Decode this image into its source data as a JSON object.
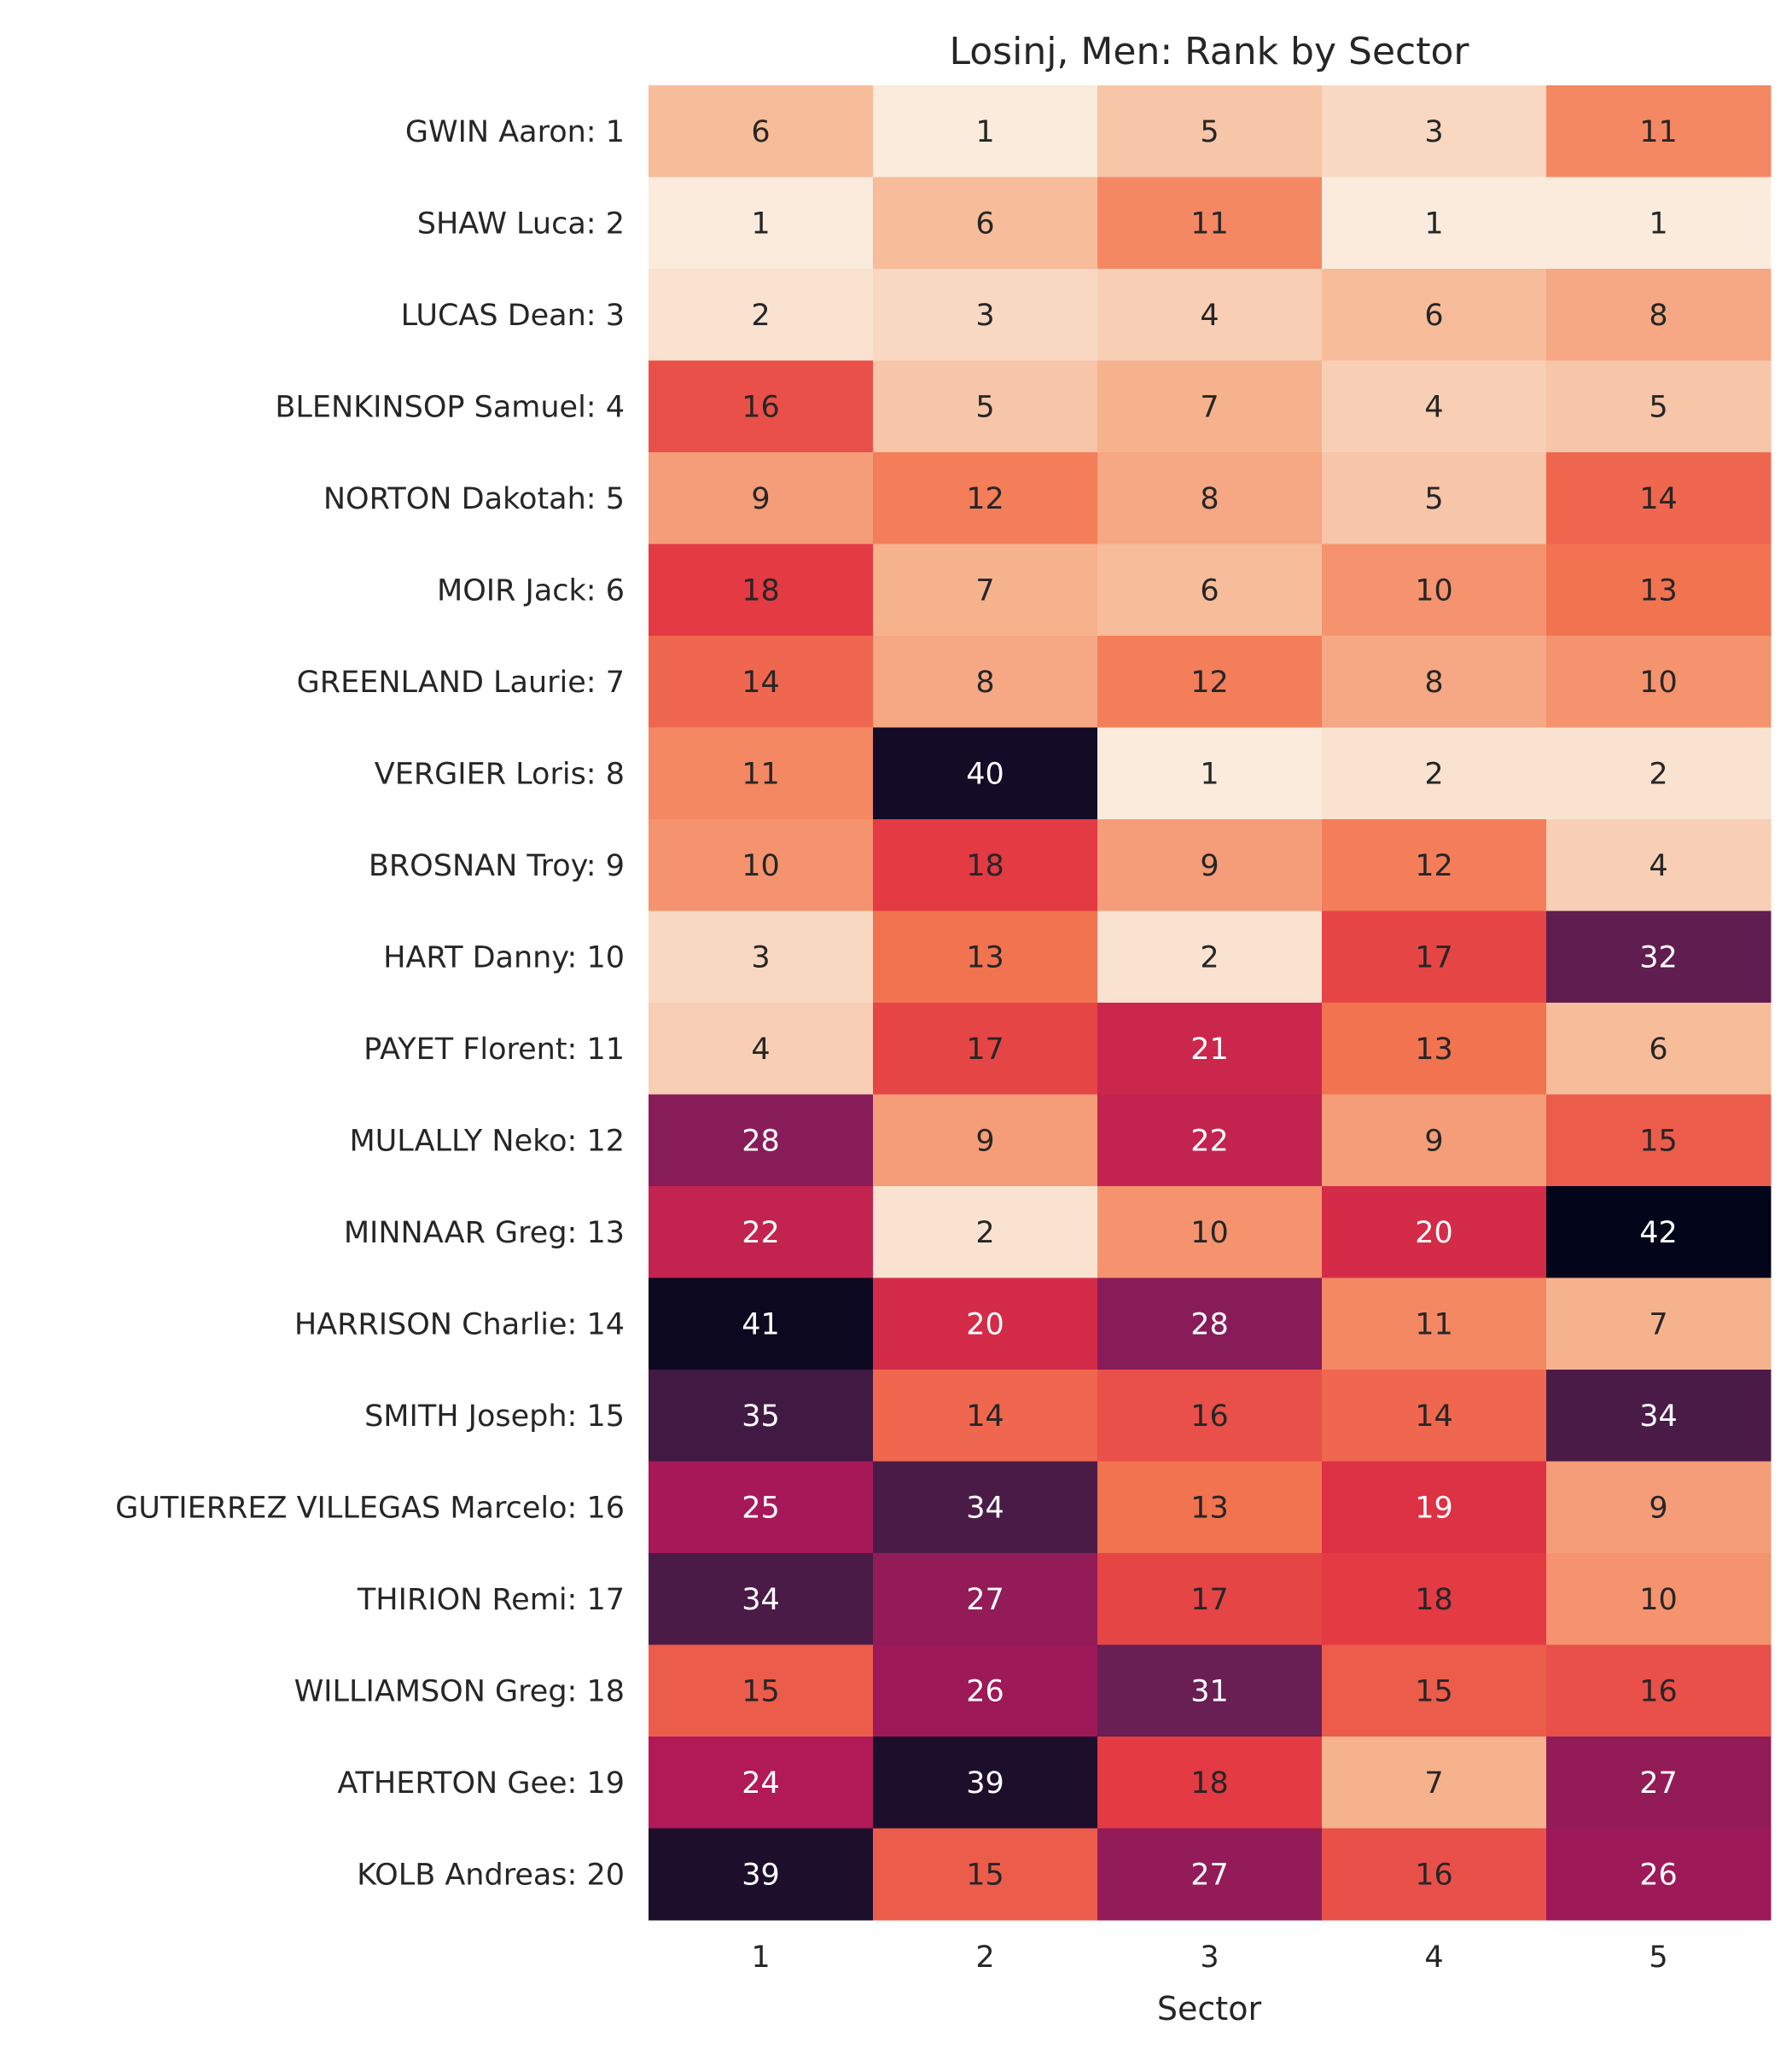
{
  "chart_data": {
    "type": "heatmap",
    "title": "Losinj, Men: Rank by Sector",
    "xlabel": "Sector",
    "ylabel": "",
    "columns": [
      "1",
      "2",
      "3",
      "4",
      "5"
    ],
    "rows": [
      "GWIN Aaron: 1",
      "SHAW Luca: 2",
      "LUCAS Dean: 3",
      "BLENKINSOP Samuel: 4",
      "NORTON Dakotah: 5",
      "MOIR Jack: 6",
      "GREENLAND Laurie: 7",
      "VERGIER Loris: 8",
      "BROSNAN Troy: 9",
      "HART Danny: 10",
      "PAYET Florent: 11",
      "MULALLY Neko: 12",
      "MINNAAR Greg: 13",
      "HARRISON Charlie: 14",
      "SMITH Joseph: 15",
      "GUTIERREZ VILLEGAS Marcelo: 16",
      "THIRION Remi: 17",
      "WILLIAMSON Greg: 18",
      "ATHERTON Gee: 19",
      "KOLB Andreas: 20"
    ],
    "values": [
      [
        6,
        1,
        5,
        3,
        11
      ],
      [
        1,
        6,
        11,
        1,
        1
      ],
      [
        2,
        3,
        4,
        6,
        8
      ],
      [
        16,
        5,
        7,
        4,
        5
      ],
      [
        9,
        12,
        8,
        5,
        14
      ],
      [
        18,
        7,
        6,
        10,
        13
      ],
      [
        14,
        8,
        12,
        8,
        10
      ],
      [
        11,
        40,
        1,
        2,
        2
      ],
      [
        10,
        18,
        9,
        12,
        4
      ],
      [
        3,
        13,
        2,
        17,
        32
      ],
      [
        4,
        17,
        21,
        13,
        6
      ],
      [
        28,
        9,
        22,
        9,
        15
      ],
      [
        22,
        2,
        10,
        20,
        42
      ],
      [
        41,
        20,
        28,
        11,
        7
      ],
      [
        35,
        14,
        16,
        14,
        34
      ],
      [
        25,
        34,
        13,
        19,
        9
      ],
      [
        34,
        27,
        17,
        18,
        10
      ],
      [
        15,
        26,
        31,
        15,
        16
      ],
      [
        24,
        39,
        18,
        7,
        27
      ],
      [
        39,
        15,
        27,
        16,
        26
      ]
    ],
    "value_range": [
      1,
      42
    ],
    "colormap": "rocket_r",
    "colormap_stops": [
      "#faebdd",
      "#f6b48f",
      "#f37651",
      "#e13342",
      "#ad1759",
      "#701f57",
      "#35193e",
      "#03051a"
    ],
    "annotations": true,
    "colorbar": false,
    "grid": false
  }
}
